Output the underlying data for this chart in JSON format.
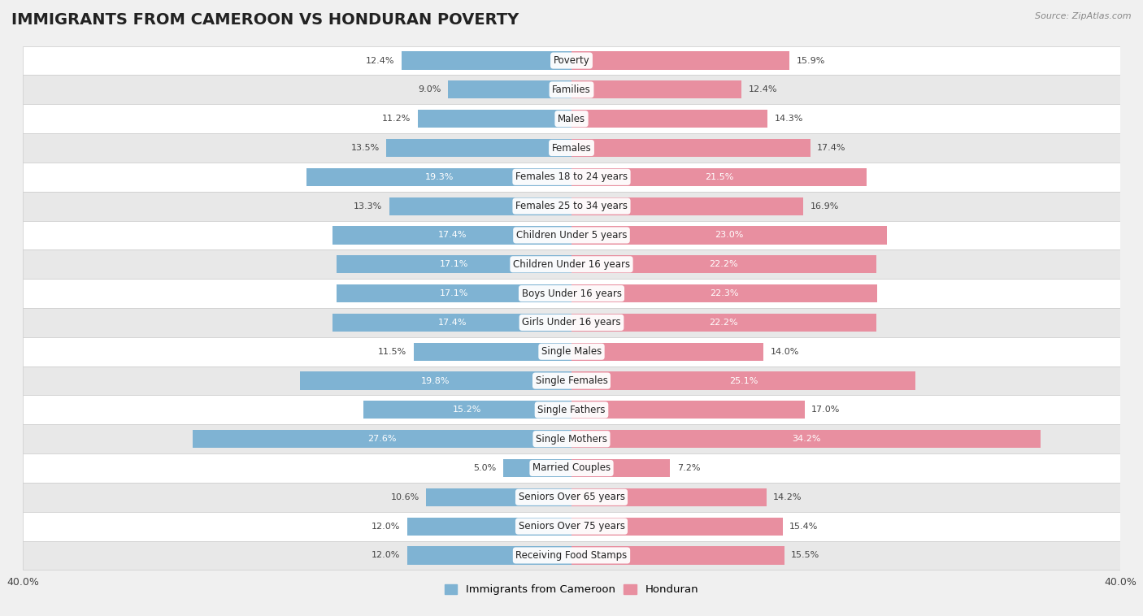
{
  "title": "IMMIGRANTS FROM CAMEROON VS HONDURAN POVERTY",
  "source": "Source: ZipAtlas.com",
  "categories": [
    "Poverty",
    "Families",
    "Males",
    "Females",
    "Females 18 to 24 years",
    "Females 25 to 34 years",
    "Children Under 5 years",
    "Children Under 16 years",
    "Boys Under 16 years",
    "Girls Under 16 years",
    "Single Males",
    "Single Females",
    "Single Fathers",
    "Single Mothers",
    "Married Couples",
    "Seniors Over 65 years",
    "Seniors Over 75 years",
    "Receiving Food Stamps"
  ],
  "cameroon_values": [
    12.4,
    9.0,
    11.2,
    13.5,
    19.3,
    13.3,
    17.4,
    17.1,
    17.1,
    17.4,
    11.5,
    19.8,
    15.2,
    27.6,
    5.0,
    10.6,
    12.0,
    12.0
  ],
  "honduran_values": [
    15.9,
    12.4,
    14.3,
    17.4,
    21.5,
    16.9,
    23.0,
    22.2,
    22.3,
    22.2,
    14.0,
    25.1,
    17.0,
    34.2,
    7.2,
    14.2,
    15.4,
    15.5
  ],
  "cameroon_color": "#7fb3d3",
  "honduran_color": "#e88fa0",
  "cameroon_label": "Immigrants from Cameroon",
  "honduran_label": "Honduran",
  "xlim": 40.0,
  "bar_height": 0.62,
  "bg_color": "#f0f0f0",
  "row_colors": [
    "#ffffff",
    "#e8e8e8"
  ],
  "title_fontsize": 14,
  "label_fontsize": 8.5,
  "value_fontsize": 8.0
}
